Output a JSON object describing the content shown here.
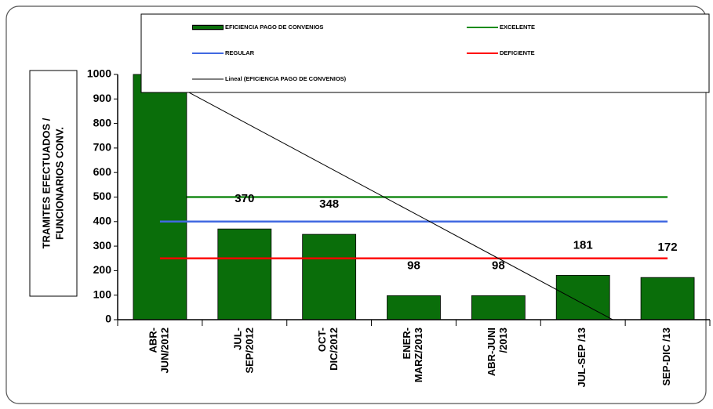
{
  "chart_data": {
    "type": "bar",
    "ylabel": [
      "TRAMITES EFECTUADOS /",
      "FUNCIONARIOS CONV."
    ],
    "categories": [
      "ABR-\nJUN/2012",
      "JUL-\nSEP/2012",
      "OCT-\nDIC/2012",
      "ENER-\nMARZ/2013",
      "ABR-JUNI\n/2013",
      "JUL-SEP /13",
      "SEP-DIC /13"
    ],
    "series": [
      {
        "name": "EXCELENTE",
        "type": "line",
        "color": "#1a8c1a",
        "values": [
          500,
          500,
          500,
          500,
          500,
          500,
          500
        ]
      },
      {
        "name": "EFICIENCIA PAGO DE CONVENIOS",
        "type": "bar",
        "color": "#0a6e0a",
        "values": [
          1000,
          370,
          348,
          98,
          98,
          181,
          172
        ]
      },
      {
        "name": "REGULAR",
        "type": "line",
        "color": "#4169e1",
        "values": [
          400,
          400,
          400,
          400,
          400,
          400,
          400
        ]
      },
      {
        "name": "DEFICIENTE",
        "type": "line",
        "color": "#ff0000",
        "values": [
          250,
          250,
          250,
          250,
          250,
          250,
          250
        ]
      },
      {
        "name": "Lineal (EFICIENCIA PAGO DE CONVENIOS)",
        "type": "trend",
        "color": "#000000",
        "values": [
          990,
          805,
          620,
          435,
          250,
          65,
          -120
        ]
      }
    ],
    "ylim": [
      0,
      1000
    ],
    "yticks": [
      0,
      100,
      200,
      300,
      400,
      500,
      600,
      700,
      800,
      900,
      1000
    ]
  }
}
